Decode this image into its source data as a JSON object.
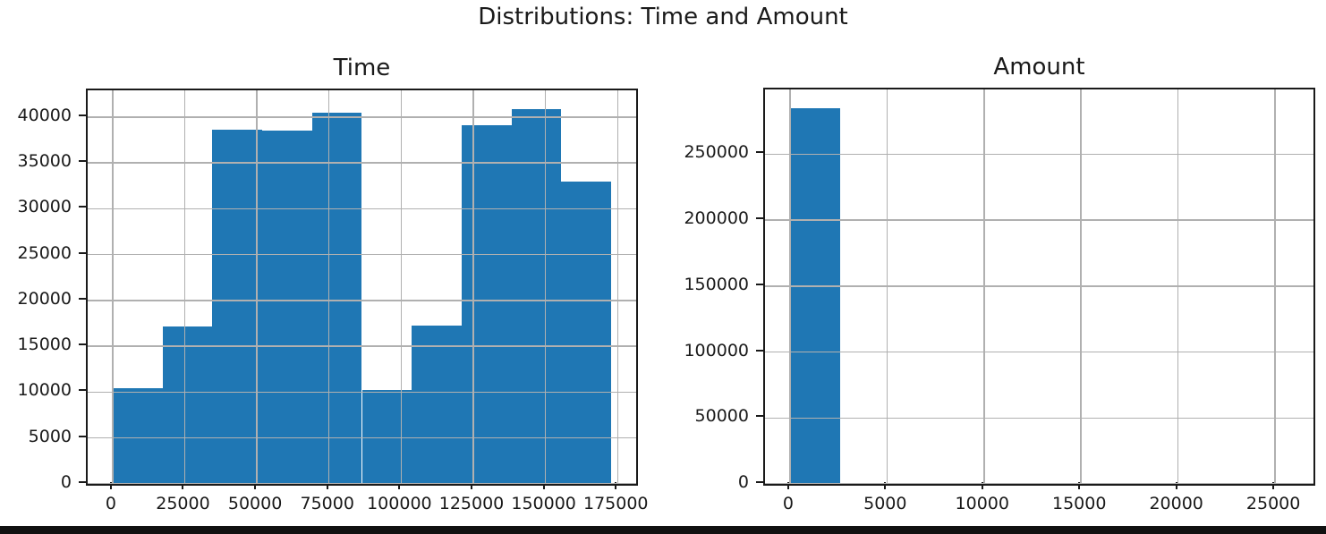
{
  "figure": {
    "suptitle": "Distributions: Time and Amount",
    "background_color": "#ffffff",
    "bottom_bar_color": "#111111",
    "text_color": "#1a1a1a",
    "spine_color": "#1a1a1a"
  },
  "chart_data": [
    {
      "type": "bar",
      "subtype": "histogram",
      "title": "Time",
      "bar_color": "#1f77b4",
      "grid": true,
      "grid_color": "#b0b0b0",
      "legend_position": "none",
      "xlabel": "",
      "ylabel": "",
      "bins": {
        "start": 0,
        "width": 17279.2
      },
      "values": [
        10480,
        17150,
        38600,
        38550,
        40450,
        10200,
        17300,
        39150,
        40900,
        33000
      ],
      "xlim": [
        -8640,
        181432
      ],
      "ylim": [
        0,
        42918
      ],
      "xticks": [
        0,
        25000,
        50000,
        75000,
        100000,
        125000,
        150000,
        175000
      ],
      "yticks": [
        0,
        5000,
        10000,
        15000,
        20000,
        25000,
        30000,
        35000,
        40000
      ]
    },
    {
      "type": "bar",
      "subtype": "histogram",
      "title": "Amount",
      "bar_color": "#1f77b4",
      "grid": true,
      "grid_color": "#b0b0b0",
      "legend_position": "none",
      "xlabel": "",
      "ylabel": "",
      "bins": {
        "start": 0,
        "width": 2569.12
      },
      "values": [
        284800,
        0,
        0,
        0,
        0,
        0,
        0,
        0,
        0,
        0
      ],
      "xlim": [
        -1285,
        26976
      ],
      "ylim": [
        0,
        299040
      ],
      "xticks": [
        0,
        5000,
        10000,
        15000,
        20000,
        25000
      ],
      "yticks": [
        0,
        50000,
        100000,
        150000,
        200000,
        250000
      ]
    }
  ]
}
